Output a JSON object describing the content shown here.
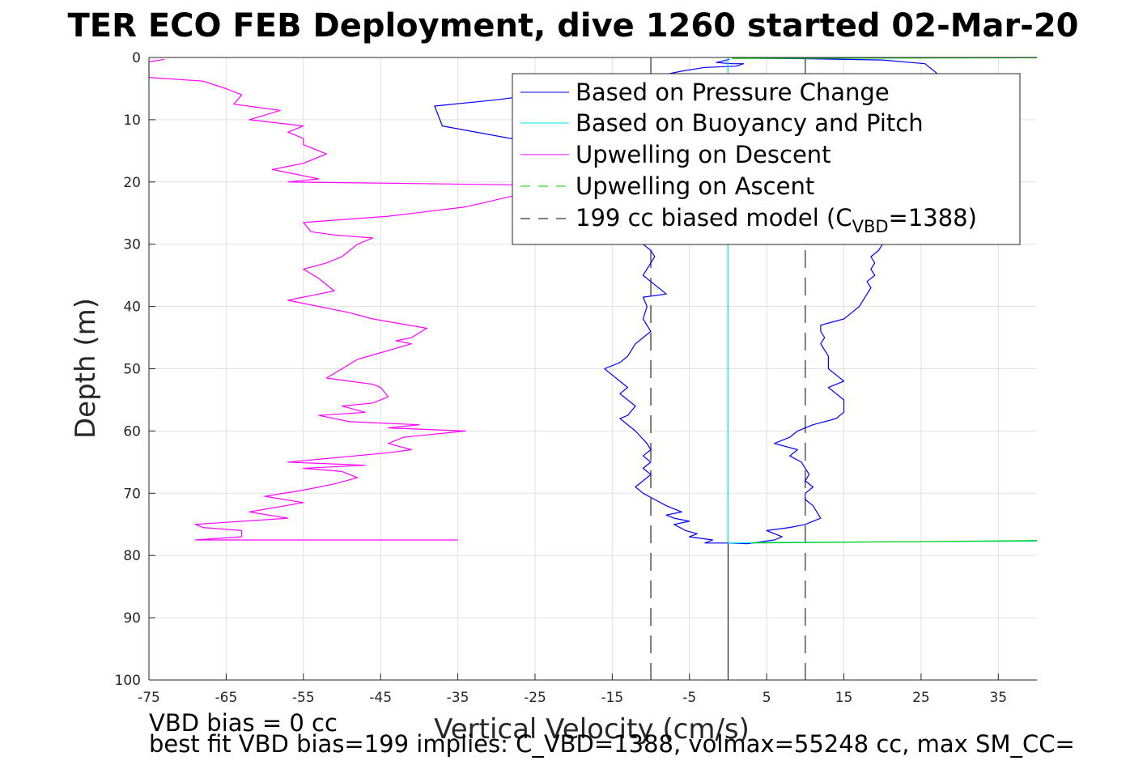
{
  "chart_data": {
    "type": "line",
    "title": "TER ECO FEB Deployment, dive 1260 started 02-Mar-20",
    "xlabel": "Vertical Velocity (cm/s)",
    "ylabel": "Depth (m)",
    "xlim": [
      -75,
      40
    ],
    "ylim": [
      0,
      100
    ],
    "y_reversed": true,
    "grid": true,
    "legend_position": "top-right",
    "x_ticks": [
      "-75",
      "-65",
      "-55",
      "-45",
      "-35",
      "-25",
      "-15",
      "-5",
      "5",
      "15",
      "25",
      "35"
    ],
    "x_tick_values": [
      -75,
      -65,
      -55,
      -45,
      -35,
      -25,
      -15,
      -5,
      5,
      15,
      25,
      35
    ],
    "y_ticks": [
      "0",
      "10",
      "20",
      "30",
      "40",
      "50",
      "60",
      "70",
      "80",
      "90",
      "100"
    ],
    "y_tick_values": [
      0,
      10,
      20,
      30,
      40,
      50,
      60,
      70,
      80,
      90,
      100
    ],
    "legend": {
      "pressure": "Based on Pressure Change",
      "buoyancy": "Based on Buoyancy and Pitch",
      "up_descent": "Upwelling on Descent",
      "up_ascent": "Upwelling on Ascent",
      "model_main": "199 cc biased model (C",
      "model_sub": "VBD",
      "model_tail": "=1388)"
    },
    "notes": {
      "line1": "VBD bias = 0 cc",
      "line2": "best fit VBD bias=199 implies: C_VBD=1388, volmax=55248 cc, max SM_CC="
    },
    "colors": {
      "pressure": "#0000ff",
      "buoyancy": "#00e5e5",
      "up_descent": "#ff00ff",
      "up_ascent": "#00cc00",
      "model": "#555555",
      "zero_line": "#000000",
      "grid": "#e0e0e0"
    },
    "model_vertical_lines_x": [
      -10,
      10
    ],
    "series": [
      {
        "name": "Based on Pressure Change",
        "key": "pressure_descent",
        "points": [
          [
            0.2,
            0.3
          ],
          [
            -1.5,
            0.8
          ],
          [
            0.5,
            1.0
          ],
          [
            2,
            1.0
          ],
          [
            1,
            1.4
          ],
          [
            -3,
            1.6
          ],
          [
            -6,
            2.2
          ],
          [
            -10,
            3.2
          ],
          [
            -20,
            5.2
          ],
          [
            -30,
            6.8
          ],
          [
            -38,
            7.8
          ],
          [
            -37,
            11.0
          ],
          [
            -26,
            13.5
          ],
          [
            -22,
            14.5
          ],
          [
            -16,
            16
          ],
          [
            -15,
            20
          ],
          [
            -14,
            25
          ],
          [
            -12,
            28
          ],
          [
            -11,
            30
          ],
          [
            -10,
            31
          ],
          [
            -9.5,
            32
          ],
          [
            -10,
            33
          ],
          [
            -11,
            35
          ],
          [
            -10,
            36
          ],
          [
            -8,
            38
          ],
          [
            -11,
            38.5
          ],
          [
            -10.5,
            40
          ],
          [
            -11,
            42
          ],
          [
            -10,
            44
          ],
          [
            -12,
            46
          ],
          [
            -13,
            48
          ],
          [
            -14,
            49
          ],
          [
            -16,
            50
          ],
          [
            -15,
            51
          ],
          [
            -13,
            53
          ],
          [
            -14,
            54
          ],
          [
            -12,
            56
          ],
          [
            -13,
            57.5
          ],
          [
            -14,
            58
          ],
          [
            -12,
            60
          ],
          [
            -10.5,
            62
          ],
          [
            -10,
            63
          ],
          [
            -11,
            64
          ],
          [
            -10,
            65
          ],
          [
            -11,
            66
          ],
          [
            -10,
            67
          ],
          [
            -11,
            68
          ],
          [
            -12,
            69
          ],
          [
            -11,
            70
          ],
          [
            -9.5,
            71
          ],
          [
            -8,
            72
          ],
          [
            -6,
            73
          ],
          [
            -8,
            73.5
          ],
          [
            -7,
            74
          ],
          [
            -5,
            74.5
          ],
          [
            -7,
            75
          ],
          [
            -5.5,
            76
          ],
          [
            -4,
            76.5
          ],
          [
            -5,
            77
          ],
          [
            -2,
            77.5
          ],
          [
            -3,
            78
          ],
          [
            0,
            78
          ],
          [
            2.5,
            78.1
          ]
        ]
      },
      {
        "name": "Based on Pressure Change",
        "key": "pressure_ascent",
        "points": [
          [
            2.5,
            78.1
          ],
          [
            6,
            77.5
          ],
          [
            7,
            77
          ],
          [
            5,
            76
          ],
          [
            8,
            75.5
          ],
          [
            10,
            75
          ],
          [
            12,
            74
          ],
          [
            11.5,
            73
          ],
          [
            11,
            72
          ],
          [
            10,
            71
          ],
          [
            10,
            70
          ],
          [
            11,
            69
          ],
          [
            10,
            68
          ],
          [
            10.5,
            67
          ],
          [
            10,
            66
          ],
          [
            9.5,
            65
          ],
          [
            8,
            64
          ],
          [
            9,
            63
          ],
          [
            6,
            62
          ],
          [
            8,
            61
          ],
          [
            9,
            60
          ],
          [
            11,
            59
          ],
          [
            14,
            58
          ],
          [
            15,
            57
          ],
          [
            15,
            55
          ],
          [
            14,
            54
          ],
          [
            13,
            53
          ],
          [
            15,
            52
          ],
          [
            14,
            51
          ],
          [
            13,
            50
          ],
          [
            13,
            48
          ],
          [
            12.5,
            47
          ],
          [
            12,
            46
          ],
          [
            12.5,
            45
          ],
          [
            12,
            44
          ],
          [
            12,
            43
          ],
          [
            15,
            42
          ],
          [
            16,
            41
          ],
          [
            17,
            40
          ],
          [
            18,
            38
          ],
          [
            18.5,
            37
          ],
          [
            18,
            36
          ],
          [
            19,
            35
          ],
          [
            18.5,
            34
          ],
          [
            19,
            33
          ],
          [
            18.5,
            32
          ],
          [
            19.5,
            31
          ],
          [
            20,
            30
          ],
          [
            21,
            26
          ],
          [
            22,
            20
          ],
          [
            23,
            15
          ],
          [
            24,
            10
          ],
          [
            25,
            6
          ],
          [
            26,
            3.5
          ],
          [
            27,
            2.5
          ],
          [
            25.5,
            1
          ],
          [
            20,
            0.4
          ],
          [
            10,
            0.2
          ],
          [
            0.5,
            0.1
          ]
        ]
      },
      {
        "name": "Based on Buoyancy and Pitch",
        "key": "buoyancy",
        "points": [
          [
            0,
            0.1
          ],
          [
            0,
            78.0
          ],
          [
            5,
            77.9
          ],
          [
            20,
            77.8
          ],
          [
            40,
            77.7
          ]
        ]
      },
      {
        "name": "Upwelling on Descent",
        "key": "up_descent",
        "points": [
          [
            -73,
            0.3
          ],
          [
            -74,
            0.5
          ],
          [
            -75,
            0.7
          ],
          [
            -75,
            3.2
          ],
          [
            -68,
            3.8
          ],
          [
            -65,
            5
          ],
          [
            -63,
            6
          ],
          [
            -64,
            7.5
          ],
          [
            -58,
            8.5
          ],
          [
            -62,
            10
          ],
          [
            -55,
            11.0
          ],
          [
            -57,
            12.0
          ],
          [
            -55,
            13.0
          ],
          [
            -55,
            14.0
          ],
          [
            -52,
            15.5
          ],
          [
            -55,
            17
          ],
          [
            -59,
            18
          ],
          [
            -53,
            19.5
          ],
          [
            -57,
            20.0
          ],
          [
            -25,
            20.5
          ],
          [
            -27,
            22
          ],
          [
            -34,
            24
          ],
          [
            -44,
            25.5
          ],
          [
            -55,
            26.5
          ],
          [
            -54,
            28
          ],
          [
            -51,
            28.5
          ],
          [
            -46,
            29
          ],
          [
            -48,
            30
          ],
          [
            -49,
            31
          ],
          [
            -50,
            32
          ],
          [
            -52,
            33
          ],
          [
            -55,
            34
          ],
          [
            -53,
            35.5
          ],
          [
            -51,
            37.5
          ],
          [
            -57,
            39
          ],
          [
            -53,
            40
          ],
          [
            -49,
            41
          ],
          [
            -46,
            42
          ],
          [
            -39,
            43.5
          ],
          [
            -41,
            45
          ],
          [
            -43,
            45.5
          ],
          [
            -41,
            46
          ],
          [
            -48,
            48.5
          ],
          [
            -50,
            50
          ],
          [
            -52,
            51.5
          ],
          [
            -49,
            52
          ],
          [
            -46,
            52.5
          ],
          [
            -45,
            53
          ],
          [
            -44,
            54.5
          ],
          [
            -46,
            55.5
          ],
          [
            -50,
            56
          ],
          [
            -47,
            57
          ],
          [
            -53,
            57.5
          ],
          [
            -49,
            58.5
          ],
          [
            -40,
            59
          ],
          [
            -44,
            59.5
          ],
          [
            -34,
            60
          ],
          [
            -42,
            61
          ],
          [
            -44,
            62
          ],
          [
            -41,
            63
          ],
          [
            -44,
            63.5
          ],
          [
            -57,
            65
          ],
          [
            -47,
            65.5
          ],
          [
            -55,
            66
          ],
          [
            -50,
            66.5
          ],
          [
            -48,
            67.5
          ],
          [
            -51,
            68.5
          ],
          [
            -55,
            69.5
          ],
          [
            -60,
            70.5
          ],
          [
            -55,
            71.5
          ],
          [
            -62,
            73
          ],
          [
            -57,
            74
          ],
          [
            -69,
            75
          ],
          [
            -68,
            75.5
          ],
          [
            -63,
            76
          ],
          [
            -63,
            77
          ],
          [
            -69,
            77.5
          ],
          [
            -35,
            77.5
          ]
        ]
      }
    ]
  }
}
